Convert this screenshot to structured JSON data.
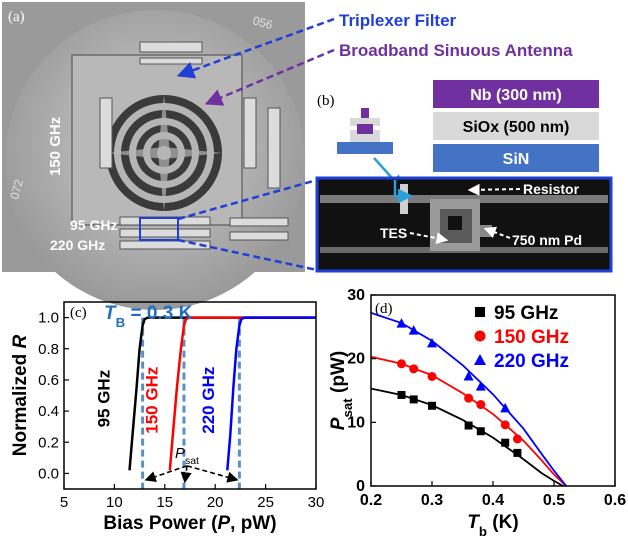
{
  "panel_a": {
    "label": "(a)",
    "chip_labels": {
      "f150": "150 GHz",
      "f95": "95 GHz",
      "f220": "220 GHz",
      "corner_top": "056",
      "corner_left": "072"
    },
    "callouts": {
      "triplexer": "Triplexer Filter",
      "antenna": "Broadband Sinuous Antenna"
    }
  },
  "panel_b": {
    "label": "(b)",
    "layers": [
      "Nb (300 nm)",
      "SiOx (500 nm)",
      "SiN"
    ],
    "annotations": {
      "resistor": "Resistor",
      "tes": "TES",
      "pd": "750 nm Pd"
    }
  },
  "colors": {
    "nb": "#7030a0",
    "siox": "#d9d9d9",
    "sin": "#4472c4",
    "callout_blue": "#1f3fd6",
    "callout_purple": "#7030a0",
    "s95": "#000000",
    "s150": "#ff0000",
    "s220": "#0000ff",
    "psat_dash": "#5b8fc9"
  },
  "chart_data": [
    {
      "panel": "(c)",
      "type": "line",
      "annotation_title": "T",
      "annotation_sub": "B",
      "annotation_value": " = 0.3 K",
      "xlabel": "Bias Power (P, pW)",
      "ylabel": "Normalized R",
      "xlim": [
        5,
        30
      ],
      "ylim": [
        -0.1,
        1.1
      ],
      "xticks": [
        5,
        10,
        15,
        20,
        25,
        30
      ],
      "yticks": [
        "0.0",
        "0.2",
        "0.4",
        "0.6",
        "0.8",
        "1.0"
      ],
      "psat_label": "P",
      "psat_sub": "sat",
      "series": [
        {
          "name": "95 GHz",
          "color": "#000000",
          "psat": 12.8,
          "x": [
            11.5,
            11.8,
            12.2,
            12.5,
            12.8,
            13.0,
            13.3,
            14,
            16,
            20,
            25,
            30
          ],
          "y": [
            0.02,
            0.25,
            0.55,
            0.8,
            0.95,
            0.99,
            1.0,
            1.0,
            1.0,
            1.0,
            1.0,
            1.0
          ]
        },
        {
          "name": "150 GHz",
          "color": "#ff0000",
          "psat": 16.9,
          "x": [
            15.5,
            15.8,
            16.2,
            16.6,
            16.9,
            17.1,
            17.4,
            18,
            20,
            25,
            30
          ],
          "y": [
            0.02,
            0.25,
            0.55,
            0.8,
            0.95,
            0.99,
            1.0,
            1.0,
            1.0,
            1.0,
            1.0
          ]
        },
        {
          "name": "220 GHz",
          "color": "#0000ff",
          "psat": 22.4,
          "x": [
            21.2,
            21.5,
            21.8,
            22.1,
            22.4,
            22.6,
            22.9,
            23.5,
            25,
            30
          ],
          "y": [
            0.02,
            0.25,
            0.55,
            0.8,
            0.95,
            0.99,
            1.0,
            1.0,
            1.0,
            1.0
          ]
        }
      ]
    },
    {
      "panel": "(d)",
      "type": "scatter",
      "xlabel_main": "T",
      "xlabel_sub": "b",
      "xlabel_unit": " (K)",
      "ylabel_main": "P",
      "ylabel_sub": "sat",
      "ylabel_unit": " (pW)",
      "xlim": [
        0.2,
        0.6
      ],
      "ylim": [
        0,
        30
      ],
      "xticks": [
        "0.2",
        "0.3",
        "0.4",
        "0.5",
        "0.6"
      ],
      "yticks": [
        "0",
        "10",
        "20",
        "30"
      ],
      "series": [
        {
          "name": "95 GHz",
          "color": "#000000",
          "marker": "square",
          "x": [
            0.25,
            0.27,
            0.3,
            0.36,
            0.38,
            0.42,
            0.44
          ],
          "y": [
            14.3,
            13.6,
            12.6,
            9.5,
            8.6,
            6.8,
            5.2
          ],
          "fit_x": [
            0.2,
            0.25,
            0.3,
            0.35,
            0.4,
            0.45,
            0.48,
            0.5,
            0.515
          ],
          "fit_y": [
            15.3,
            14.3,
            12.7,
            10.4,
            7.6,
            4.2,
            2.0,
            0.8,
            0.0
          ]
        },
        {
          "name": "150 GHz",
          "color": "#ff0000",
          "marker": "circle",
          "x": [
            0.25,
            0.27,
            0.3,
            0.36,
            0.38,
            0.42,
            0.44
          ],
          "y": [
            19.2,
            18.4,
            17.2,
            13.8,
            12.8,
            9.6,
            7.4
          ],
          "fit_x": [
            0.2,
            0.25,
            0.3,
            0.35,
            0.4,
            0.45,
            0.48,
            0.5,
            0.52
          ],
          "fit_y": [
            20.3,
            19.2,
            17.4,
            14.6,
            11.3,
            7.1,
            4.0,
            1.8,
            0.0
          ]
        },
        {
          "name": "220 GHz",
          "color": "#0000ff",
          "marker": "triangle",
          "x": [
            0.25,
            0.27,
            0.3,
            0.36,
            0.38,
            0.42
          ],
          "y": [
            25.5,
            24.4,
            22.4,
            17.2,
            15.6,
            12.2
          ],
          "fit_x": [
            0.2,
            0.25,
            0.3,
            0.35,
            0.4,
            0.45,
            0.48,
            0.5,
            0.52
          ],
          "fit_y": [
            27.2,
            25.6,
            22.8,
            19.0,
            14.4,
            9.0,
            5.0,
            2.4,
            0.0
          ]
        }
      ]
    }
  ]
}
